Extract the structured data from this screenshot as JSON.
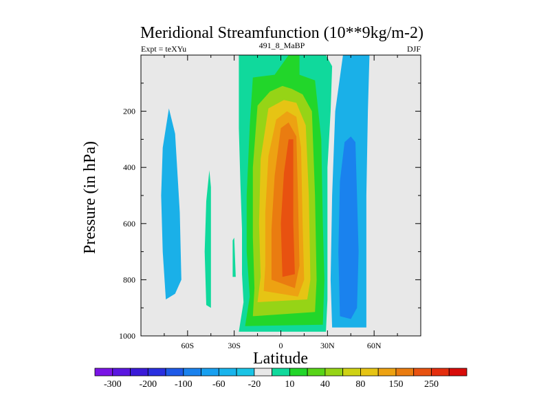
{
  "chart_data": {
    "type": "heatmap",
    "title": "Meridional Streamfunction (10**9kg/m-2)",
    "left_string": "Expt = teXYu",
    "center_string": "491_8_MaBP",
    "right_string": "DJF",
    "xlabel": "Latitude",
    "ylabel": "Pressure (in hPa)",
    "xlim": [
      -90,
      90
    ],
    "ylim": [
      0,
      1000
    ],
    "y_inverted": true,
    "x_ticks": [
      -60,
      -30,
      0,
      30,
      60
    ],
    "x_tick_labels": [
      "60S",
      "30S",
      "0",
      "30N",
      "60N"
    ],
    "y_ticks": [
      200,
      400,
      600,
      800,
      1000
    ],
    "y_tick_labels": [
      "200",
      "400",
      "600",
      "800",
      "1000"
    ],
    "missing_color": "#e8e8e8",
    "colorbar": {
      "colors": [
        "#7a14e6",
        "#5a16e0",
        "#3a1ad8",
        "#2a30e0",
        "#1e5ae8",
        "#1a82ee",
        "#18a0f0",
        "#18b4ec",
        "#1ac4e6",
        "#e8e8e8",
        "#10d99c",
        "#22d62a",
        "#58d418",
        "#96d416",
        "#cfd214",
        "#e6c414",
        "#eda212",
        "#ea7c10",
        "#e85210",
        "#e42e0e",
        "#d80c0a"
      ],
      "tick_labels": [
        "-300",
        "-200",
        "-100",
        "-60",
        "-20",
        "10",
        "40",
        "80",
        "150",
        "250"
      ]
    },
    "regions": [
      {
        "value_band": "-20",
        "color": "#1ab0e8",
        "points": [
          [
            -74,
            870
          ],
          [
            -76,
            700
          ],
          [
            -77,
            500
          ],
          [
            -76,
            330
          ],
          [
            -72,
            190
          ],
          [
            -68,
            280
          ],
          [
            -65,
            560
          ],
          [
            -64,
            800
          ],
          [
            -68,
            850
          ]
        ]
      },
      {
        "value_band": "10",
        "color": "#10d99c",
        "points": [
          [
            -48,
            890
          ],
          [
            -49,
            700
          ],
          [
            -48,
            520
          ],
          [
            -46,
            410
          ],
          [
            -45,
            470
          ],
          [
            -45,
            700
          ],
          [
            -45,
            900
          ]
        ]
      },
      {
        "value_band": "10",
        "color": "#10d99c",
        "points": [
          [
            -31,
            790
          ],
          [
            -31,
            660
          ],
          [
            -30,
            650
          ],
          [
            -29,
            790
          ]
        ]
      },
      {
        "value_band": "10",
        "color": "#10d99c",
        "points": [
          [
            -27,
            985
          ],
          [
            -24,
            880
          ],
          [
            -25,
            780
          ],
          [
            -25,
            620
          ],
          [
            -26,
            460
          ],
          [
            -27,
            260
          ],
          [
            -27,
            0
          ],
          [
            29,
            0
          ],
          [
            33,
            40
          ],
          [
            32,
            200
          ],
          [
            30,
            400
          ],
          [
            30,
            600
          ],
          [
            30,
            780
          ],
          [
            30,
            870
          ],
          [
            29,
            985
          ]
        ]
      },
      {
        "value_band": "40",
        "color": "#22d62a",
        "points": [
          [
            -23,
            965
          ],
          [
            -20,
            860
          ],
          [
            -22,
            700
          ],
          [
            -22,
            500
          ],
          [
            -20,
            250
          ],
          [
            -18,
            80
          ],
          [
            -4,
            70
          ],
          [
            5,
            0
          ],
          [
            12,
            0
          ],
          [
            12,
            70
          ],
          [
            22,
            90
          ],
          [
            26,
            300
          ],
          [
            27,
            600
          ],
          [
            28,
            800
          ],
          [
            27,
            960
          ]
        ]
      },
      {
        "value_band": "80",
        "color": "#96d416",
        "points": [
          [
            -18,
            930
          ],
          [
            -17,
            830
          ],
          [
            -18,
            650
          ],
          [
            -18,
            400
          ],
          [
            -15,
            180
          ],
          [
            -7,
            130
          ],
          [
            1,
            110
          ],
          [
            7,
            120
          ],
          [
            14,
            140
          ],
          [
            20,
            200
          ],
          [
            22,
            500
          ],
          [
            23,
            800
          ],
          [
            22,
            915
          ]
        ]
      },
      {
        "value_band": "150",
        "color": "#e6c414",
        "points": [
          [
            -15,
            880
          ],
          [
            -13,
            790
          ],
          [
            -14,
            600
          ],
          [
            -13,
            370
          ],
          [
            -8,
            190
          ],
          [
            2,
            160
          ],
          [
            10,
            170
          ],
          [
            16,
            250
          ],
          [
            18,
            500
          ],
          [
            19,
            800
          ],
          [
            17,
            870
          ]
        ]
      },
      {
        "value_band": "150",
        "color": "#eda212",
        "points": [
          [
            -11,
            840
          ],
          [
            -10,
            750
          ],
          [
            -10,
            560
          ],
          [
            -8,
            360
          ],
          [
            -3,
            230
          ],
          [
            4,
            200
          ],
          [
            10,
            220
          ],
          [
            13,
            330
          ],
          [
            14,
            600
          ],
          [
            15,
            800
          ],
          [
            11,
            860
          ]
        ]
      },
      {
        "value_band": "250",
        "color": "#ea7c10",
        "points": [
          [
            -6,
            800
          ],
          [
            -6,
            620
          ],
          [
            -4,
            430
          ],
          [
            0,
            260
          ],
          [
            5,
            240
          ],
          [
            10,
            290
          ],
          [
            11,
            500
          ],
          [
            12,
            750
          ],
          [
            9,
            830
          ]
        ]
      },
      {
        "value_band": "250",
        "color": "#e85210",
        "points": [
          [
            1,
            790
          ],
          [
            0,
            600
          ],
          [
            2,
            420
          ],
          [
            5,
            300
          ],
          [
            8,
            300
          ],
          [
            8,
            600
          ],
          [
            9,
            780
          ]
        ]
      },
      {
        "value_band": "-20",
        "color": "#1ab0e8",
        "points": [
          [
            33,
            970
          ],
          [
            32,
            800
          ],
          [
            33,
            500
          ],
          [
            35,
            200
          ],
          [
            40,
            0
          ],
          [
            57,
            0
          ],
          [
            56,
            200
          ],
          [
            55,
            500
          ],
          [
            55,
            800
          ],
          [
            55,
            970
          ]
        ]
      },
      {
        "value_band": "-60",
        "color": "#1a82ee",
        "points": [
          [
            38,
            930
          ],
          [
            37,
            700
          ],
          [
            38,
            450
          ],
          [
            41,
            310
          ],
          [
            45,
            290
          ],
          [
            48,
            310
          ],
          [
            49,
            500
          ],
          [
            50,
            700
          ],
          [
            49,
            900
          ],
          [
            45,
            940
          ]
        ]
      }
    ]
  }
}
